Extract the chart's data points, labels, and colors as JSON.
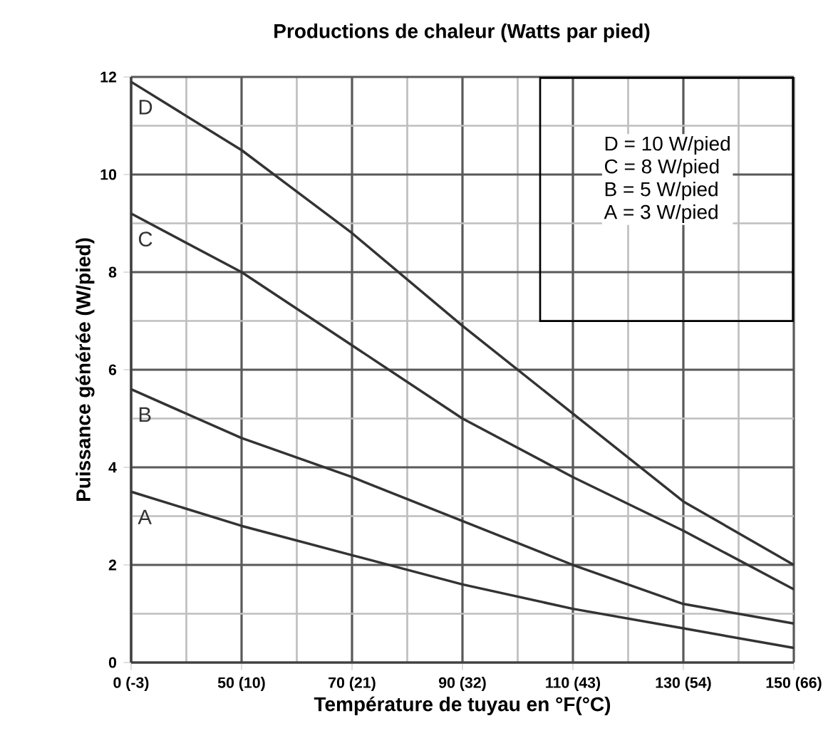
{
  "chart_data": {
    "type": "line",
    "title": "Productions de chaleur (Watts par pied)",
    "xlabel": "Température de tuyau en °F(°C)",
    "ylabel": "Puissance générée (W/pied)",
    "categories": [
      "0 (-3)",
      "50 (10)",
      "70 (21)",
      "90 (32)",
      "110 (43)",
      "130 (54)",
      "150 (66)"
    ],
    "series": [
      {
        "name": "D",
        "color": "#333333",
        "values": [
          11.9,
          10.5,
          8.8,
          6.9,
          5.1,
          3.3,
          2.0
        ]
      },
      {
        "name": "C",
        "color": "#333333",
        "values": [
          9.2,
          8.0,
          6.5,
          5.0,
          3.8,
          2.7,
          1.5
        ]
      },
      {
        "name": "B",
        "color": "#333333",
        "values": [
          5.6,
          4.6,
          3.8,
          2.9,
          2.0,
          1.2,
          0.8
        ]
      },
      {
        "name": "A",
        "color": "#333333",
        "values": [
          3.5,
          2.8,
          2.2,
          1.6,
          1.1,
          0.7,
          0.3
        ]
      }
    ],
    "ylim": [
      0,
      12
    ],
    "yticks": [
      0,
      2,
      4,
      6,
      8,
      10,
      12
    ],
    "annotations": [
      "D = 10 W/pied",
      "C = 8 W/pied",
      "B = 5 W/pied",
      "A = 3 W/pied"
    ],
    "grid": true,
    "marker": "none",
    "line_style": "solid"
  }
}
